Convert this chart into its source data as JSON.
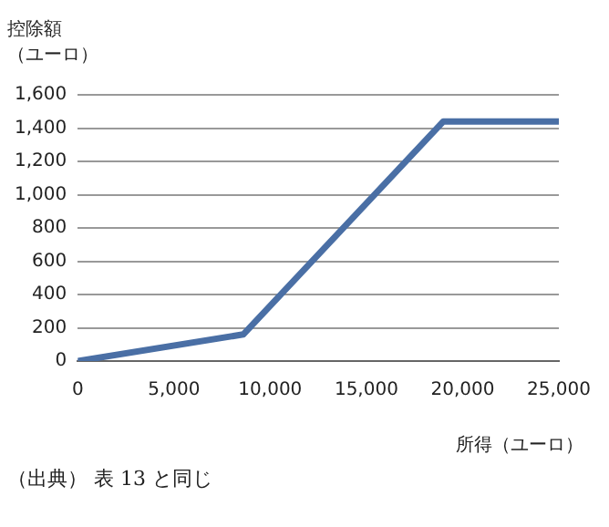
{
  "chart_data": {
    "type": "line",
    "ylabel": "控除額（ユーロ）",
    "xlabel": "所得（ユーロ）",
    "annotations": [
      "（出典） 表 13 と同じ"
    ],
    "x": [
      0,
      8600,
      19000,
      25000
    ],
    "series": [
      {
        "color": "#4a6fa5",
        "values": [
          0,
          160,
          1440,
          1440
        ]
      }
    ],
    "xlim": [
      0,
      25000
    ],
    "xticks": [
      {
        "value": 0,
        "label": "0"
      },
      {
        "value": 5000,
        "label": "5,000"
      },
      {
        "value": 10000,
        "label": "10,000"
      },
      {
        "value": 15000,
        "label": "15,000"
      },
      {
        "value": 20000,
        "label": "20,000"
      },
      {
        "value": 25000,
        "label": "25,000"
      }
    ],
    "ylim": [
      0,
      1600
    ],
    "yticks": [
      {
        "value": 0,
        "label": "0"
      },
      {
        "value": 200,
        "label": "200"
      },
      {
        "value": 400,
        "label": "400"
      },
      {
        "value": 600,
        "label": "600"
      },
      {
        "value": 800,
        "label": "800"
      },
      {
        "value": 1000,
        "label": "1,000"
      },
      {
        "value": 1200,
        "label": "1,200"
      },
      {
        "value": 1400,
        "label": "1,400"
      },
      {
        "value": 1600,
        "label": "1,600"
      }
    ],
    "grid": "y",
    "legend": false,
    "marker": "none",
    "line_style": "solid"
  }
}
